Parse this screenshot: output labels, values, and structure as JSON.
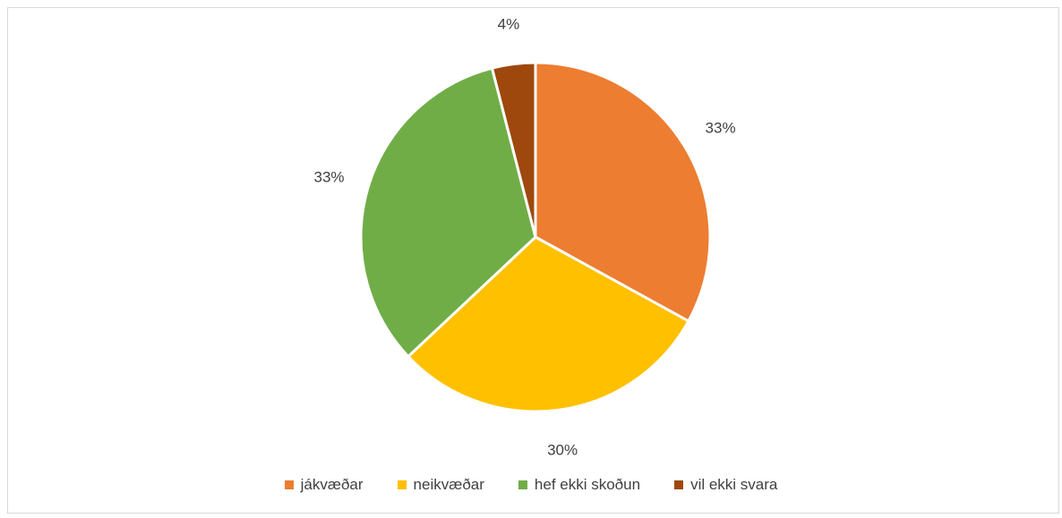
{
  "chart_data": {
    "type": "pie",
    "categories": [
      "jákvæðar",
      "neikvæðar",
      "hef ekki skoðun",
      "vil ekki svara"
    ],
    "values": [
      33,
      30,
      33,
      4
    ],
    "data_labels": [
      "33%",
      "30%",
      "33%",
      "4%"
    ],
    "colors": [
      "#ed7d31",
      "#ffc000",
      "#70ad47",
      "#9e480e"
    ],
    "legend_position": "bottom",
    "title": "",
    "start_angle_deg": 0,
    "direction": "clockwise"
  }
}
